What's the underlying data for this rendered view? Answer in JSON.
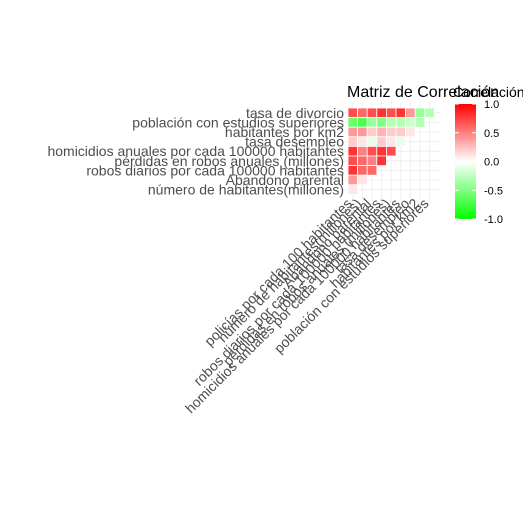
{
  "chart_data": {
    "type": "heatmap",
    "title": "Matriz de Correlación",
    "y_labels": [
      "tasa de divorcio",
      "población con estudios superiores",
      "habitantes por km2",
      "tasa desempleo",
      "homicidios anuales por cada 100000 habitantes",
      "pérdidas en robos anuales (millones)",
      "robos diarios por cada 100000 habitantes",
      "Abandono parental",
      "número de habitantes(millones)"
    ],
    "x_labels": [
      "policías por cada 100 habitantes",
      "número de habitantes(millones)",
      "Abandono parental",
      "robos diarios por cada 100000 habitantes",
      "pérdidas en robos anuales (millones)",
      "homicidios anuales por cada 100000 habitantes",
      "tasa desempleo",
      "habitantes por km2",
      "población con estudios superiores"
    ],
    "values": [
      [
        0.7,
        0.6,
        0.7,
        0.8,
        0.7,
        0.8,
        0.4,
        -0.4,
        -0.3
      ],
      [
        -0.6,
        -0.7,
        -0.4,
        -0.5,
        -0.3,
        -0.3,
        -0.2,
        -0.3,
        null
      ],
      [
        0.4,
        0.4,
        0.2,
        0.3,
        0.2,
        0.2,
        0.1,
        null,
        null
      ],
      [
        0.2,
        0.1,
        -0.1,
        0.2,
        0.1,
        -0.1,
        null,
        null,
        null
      ],
      [
        0.8,
        0.5,
        0.7,
        0.8,
        0.7,
        null,
        null,
        null,
        null
      ],
      [
        0.7,
        0.6,
        0.5,
        0.8,
        null,
        null,
        null,
        null,
        null
      ],
      [
        0.8,
        0.6,
        0.6,
        null,
        null,
        null,
        null,
        null,
        null
      ],
      [
        0.4,
        0.1,
        null,
        null,
        null,
        null,
        null,
        null,
        null
      ],
      [
        0.1,
        null,
        null,
        null,
        null,
        null,
        null,
        null,
        null
      ]
    ],
    "color_scale": {
      "low": "#00ff00",
      "mid": "#ffffff",
      "high": "#ff0000",
      "min": -1,
      "max": 1
    },
    "legend": {
      "title": "Correlación",
      "ticks": [
        1.0,
        0.5,
        0.0,
        -0.5,
        -1.0
      ],
      "tick_labels": [
        "1.0",
        "0.5",
        "0.0",
        "-0.5",
        "-1.0"
      ],
      "position": "right"
    },
    "grid": true
  }
}
